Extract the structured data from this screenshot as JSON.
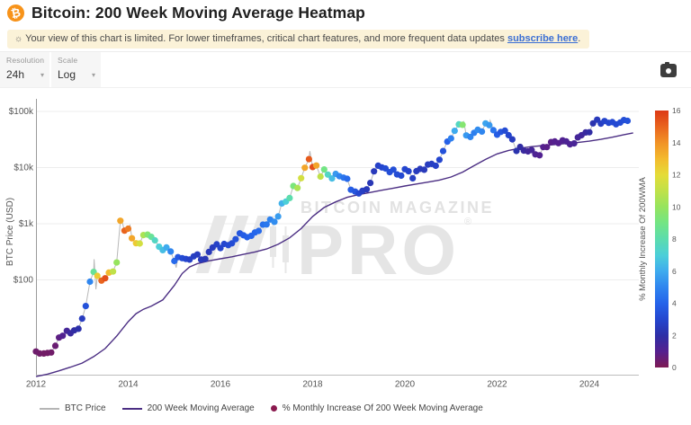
{
  "header": {
    "title": "Bitcoin: 200 Week Moving Average Heatmap",
    "icon_char": "₿"
  },
  "banner": {
    "icon_char": "☼",
    "text": "Your view of this chart is limited. For lower timeframes, critical chart features, and more frequent data updates ",
    "link": "subscribe here",
    "suffix": "."
  },
  "controls": {
    "resolution_label": "Resolution",
    "resolution_value": "24h",
    "scale_label": "Scale",
    "scale_value": "Log",
    "chevron_char": "▾"
  },
  "watermark": {
    "line1": "BITCOIN MAGAZINE",
    "line2": "PRO",
    "reg": "®"
  },
  "legend": {
    "items": [
      {
        "label": "BTC Price",
        "type": "line",
        "color": "#b5b5b5"
      },
      {
        "label": "200 Week Moving Average",
        "type": "line",
        "color": "#4b2e83"
      },
      {
        "label": "% Monthly Increase Of 200 Week Moving Average",
        "type": "dot",
        "color": "#8a1a4f"
      }
    ]
  },
  "chart_data": {
    "type": "scatter",
    "title": "Bitcoin: 200 Week Moving Average Heatmap",
    "xlabel": "",
    "ylabel": "BTC Price (USD)",
    "y_scale": "log",
    "x_range": [
      2012,
      2025
    ],
    "x_ticks": [
      2012,
      2014,
      2016,
      2018,
      2020,
      2022,
      2024
    ],
    "y_ticks": [
      {
        "label": "$100k",
        "value": 100000
      },
      {
        "label": "$10k",
        "value": 10000
      },
      {
        "label": "$1k",
        "value": 1000
      },
      {
        "label": "$100",
        "value": 100
      }
    ],
    "colorbar": {
      "label": "% Monthly Increase Of 200WMA",
      "range": [
        0,
        16
      ],
      "ticks": [
        0,
        2,
        4,
        6,
        8,
        10,
        12,
        14,
        16
      ],
      "stops": [
        [
          0,
          "#7f1a54"
        ],
        [
          1,
          "#55208f"
        ],
        [
          2,
          "#2d2ea6"
        ],
        [
          3,
          "#2446cf"
        ],
        [
          4,
          "#2563ea"
        ],
        [
          5,
          "#2f86ef"
        ],
        [
          6,
          "#3fabee"
        ],
        [
          7,
          "#4ccfd8"
        ],
        [
          8,
          "#5cdcad"
        ],
        [
          9,
          "#73e584"
        ],
        [
          10,
          "#96e45e"
        ],
        [
          11,
          "#c0e149"
        ],
        [
          12,
          "#e5dc38"
        ],
        [
          13,
          "#f3ba2d"
        ],
        [
          14,
          "#f19226"
        ],
        [
          15,
          "#e9641e"
        ],
        [
          16,
          "#dc3914"
        ]
      ]
    },
    "heatmap_points": [
      [
        2012.0,
        5.3,
        0.4
      ],
      [
        2012.08,
        4.9,
        0.35
      ],
      [
        2012.17,
        4.9,
        0.3
      ],
      [
        2012.25,
        5.0,
        0.3
      ],
      [
        2012.33,
        5.1,
        0.35
      ],
      [
        2012.42,
        6.7,
        0.5
      ],
      [
        2012.5,
        9.4,
        0.8
      ],
      [
        2012.58,
        10.1,
        1.1
      ],
      [
        2012.67,
        12.4,
        1.4
      ],
      [
        2012.75,
        11.2,
        1.7
      ],
      [
        2012.83,
        12.6,
        1.9
      ],
      [
        2012.92,
        13.5,
        2.1
      ],
      [
        2013.0,
        20.4,
        2.6
      ],
      [
        2013.08,
        34.2,
        3.4
      ],
      [
        2013.17,
        93,
        5.0
      ],
      [
        2013.25,
        139,
        8.5
      ],
      [
        2013.33,
        118,
        12.5
      ],
      [
        2013.42,
        97,
        15.0
      ],
      [
        2013.5,
        107,
        15.5
      ],
      [
        2013.58,
        135,
        13.0
      ],
      [
        2013.67,
        141,
        11.0
      ],
      [
        2013.75,
        204,
        10.0
      ],
      [
        2013.83,
        1130,
        13.5
      ],
      [
        2013.92,
        754,
        15.0
      ],
      [
        2014.0,
        816,
        14.5
      ],
      [
        2014.08,
        550,
        13.5
      ],
      [
        2014.17,
        450,
        12.5
      ],
      [
        2014.25,
        445,
        11.5
      ],
      [
        2014.33,
        628,
        10.5
      ],
      [
        2014.42,
        640,
        9.5
      ],
      [
        2014.5,
        585,
        8.5
      ],
      [
        2014.58,
        505,
        7.5
      ],
      [
        2014.67,
        389,
        7.0
      ],
      [
        2014.75,
        338,
        6.5
      ],
      [
        2014.83,
        378,
        6.0
      ],
      [
        2014.92,
        320,
        5.0
      ],
      [
        2015.0,
        217,
        4.2
      ],
      [
        2015.08,
        254,
        3.6
      ],
      [
        2015.17,
        244,
        3.2
      ],
      [
        2015.25,
        236,
        3.0
      ],
      [
        2015.33,
        230,
        2.8
      ],
      [
        2015.42,
        263,
        2.7
      ],
      [
        2015.5,
        284,
        2.6
      ],
      [
        2015.58,
        230,
        2.5
      ],
      [
        2015.67,
        236,
        2.4
      ],
      [
        2015.75,
        314,
        2.5
      ],
      [
        2015.83,
        377,
        2.6
      ],
      [
        2015.92,
        430,
        2.8
      ],
      [
        2016.0,
        368,
        2.9
      ],
      [
        2016.08,
        437,
        3.0
      ],
      [
        2016.17,
        416,
        3.1
      ],
      [
        2016.25,
        448,
        3.2
      ],
      [
        2016.33,
        531,
        3.4
      ],
      [
        2016.42,
        673,
        3.6
      ],
      [
        2016.5,
        624,
        3.8
      ],
      [
        2016.58,
        575,
        3.9
      ],
      [
        2016.67,
        610,
        4.0
      ],
      [
        2016.75,
        700,
        4.1
      ],
      [
        2016.83,
        745,
        4.2
      ],
      [
        2016.92,
        963,
        4.4
      ],
      [
        2017.0,
        970,
        4.6
      ],
      [
        2017.08,
        1190,
        4.9
      ],
      [
        2017.17,
        1080,
        5.2
      ],
      [
        2017.25,
        1350,
        5.6
      ],
      [
        2017.33,
        2300,
        6.2
      ],
      [
        2017.42,
        2480,
        7.0
      ],
      [
        2017.5,
        2870,
        8.0
      ],
      [
        2017.58,
        4700,
        9.2
      ],
      [
        2017.67,
        4340,
        10.5
      ],
      [
        2017.75,
        6470,
        11.5
      ],
      [
        2017.83,
        9920,
        13.5
      ],
      [
        2017.92,
        14160,
        15.2
      ],
      [
        2018.0,
        10220,
        15.5
      ],
      [
        2018.08,
        10900,
        13.5
      ],
      [
        2018.17,
        6930,
        11.0
      ],
      [
        2018.25,
        9240,
        9.0
      ],
      [
        2018.33,
        7490,
        7.5
      ],
      [
        2018.42,
        6400,
        6.5
      ],
      [
        2018.5,
        7730,
        5.5
      ],
      [
        2018.58,
        7010,
        5.0
      ],
      [
        2018.67,
        6630,
        4.5
      ],
      [
        2018.75,
        6300,
        4.2
      ],
      [
        2018.83,
        4020,
        3.8
      ],
      [
        2018.92,
        3740,
        3.5
      ],
      [
        2019.0,
        3460,
        3.0
      ],
      [
        2019.08,
        3850,
        2.7
      ],
      [
        2019.17,
        4100,
        2.5
      ],
      [
        2019.25,
        5320,
        2.4
      ],
      [
        2019.33,
        8570,
        2.5
      ],
      [
        2019.42,
        10820,
        2.8
      ],
      [
        2019.5,
        10080,
        3.0
      ],
      [
        2019.58,
        9630,
        3.2
      ],
      [
        2019.67,
        8290,
        3.3
      ],
      [
        2019.75,
        9200,
        3.3
      ],
      [
        2019.83,
        7560,
        3.2
      ],
      [
        2019.92,
        7190,
        3.1
      ],
      [
        2020.0,
        9350,
        3.0
      ],
      [
        2020.08,
        8600,
        2.9
      ],
      [
        2020.17,
        6440,
        2.7
      ],
      [
        2020.25,
        8630,
        2.6
      ],
      [
        2020.33,
        9450,
        2.5
      ],
      [
        2020.42,
        9140,
        2.5
      ],
      [
        2020.5,
        11320,
        2.6
      ],
      [
        2020.58,
        11650,
        2.7
      ],
      [
        2020.67,
        10780,
        2.8
      ],
      [
        2020.75,
        13800,
        3.0
      ],
      [
        2020.83,
        19700,
        3.4
      ],
      [
        2020.92,
        28990,
        3.9
      ],
      [
        2021.0,
        33110,
        4.8
      ],
      [
        2021.08,
        45140,
        6.0
      ],
      [
        2021.17,
        58800,
        7.5
      ],
      [
        2021.25,
        57750,
        9.5
      ],
      [
        2021.33,
        37330,
        5.5
      ],
      [
        2021.42,
        35040,
        5.0
      ],
      [
        2021.5,
        41550,
        4.8
      ],
      [
        2021.58,
        47130,
        5.2
      ],
      [
        2021.67,
        43790,
        5.0
      ],
      [
        2021.75,
        61320,
        5.8
      ],
      [
        2021.83,
        57000,
        5.5
      ],
      [
        2021.92,
        46220,
        4.5
      ],
      [
        2022.0,
        38480,
        3.8
      ],
      [
        2022.08,
        43190,
        3.5
      ],
      [
        2022.17,
        45540,
        3.2
      ],
      [
        2022.25,
        37640,
        3.0
      ],
      [
        2022.33,
        31790,
        2.6
      ],
      [
        2022.42,
        19780,
        2.2
      ],
      [
        2022.5,
        23340,
        1.9
      ],
      [
        2022.58,
        20050,
        1.7
      ],
      [
        2022.67,
        19430,
        1.5
      ],
      [
        2022.75,
        20490,
        1.4
      ],
      [
        2022.83,
        17170,
        1.2
      ],
      [
        2022.92,
        16550,
        1.1
      ],
      [
        2023.0,
        23140,
        1.0
      ],
      [
        2023.08,
        23150,
        0.9
      ],
      [
        2023.17,
        28480,
        0.9
      ],
      [
        2023.25,
        29230,
        1.0
      ],
      [
        2023.33,
        27220,
        1.0
      ],
      [
        2023.42,
        30480,
        1.1
      ],
      [
        2023.5,
        29230,
        1.2
      ],
      [
        2023.58,
        25930,
        1.2
      ],
      [
        2023.67,
        26960,
        1.3
      ],
      [
        2023.75,
        34500,
        1.4
      ],
      [
        2023.83,
        37710,
        1.5
      ],
      [
        2023.92,
        42280,
        1.7
      ],
      [
        2024.0,
        42580,
        1.9
      ],
      [
        2024.08,
        61200,
        2.2
      ],
      [
        2024.17,
        71330,
        2.5
      ],
      [
        2024.25,
        60640,
        2.7
      ],
      [
        2024.33,
        67500,
        2.9
      ],
      [
        2024.42,
        62680,
        3.0
      ],
      [
        2024.5,
        64620,
        3.1
      ],
      [
        2024.58,
        58970,
        3.1
      ],
      [
        2024.67,
        63330,
        3.2
      ],
      [
        2024.75,
        70220,
        3.3
      ],
      [
        2024.83,
        68000,
        3.4
      ]
    ],
    "price_line_extra": [
      [
        2013.26,
        233
      ],
      [
        2013.3,
        68
      ],
      [
        2013.86,
        1150
      ],
      [
        2014.04,
        940
      ],
      [
        2015.04,
        165
      ],
      [
        2017.94,
        19650
      ],
      [
        2021.28,
        64800
      ],
      [
        2021.85,
        69000
      ],
      [
        2024.2,
        73800
      ]
    ],
    "wma_line": [
      [
        2012.0,
        1.9
      ],
      [
        2012.25,
        2.1
      ],
      [
        2012.5,
        2.4
      ],
      [
        2012.75,
        2.8
      ],
      [
        2013.0,
        3.3
      ],
      [
        2013.25,
        4.3
      ],
      [
        2013.5,
        6
      ],
      [
        2013.75,
        10
      ],
      [
        2014.0,
        18
      ],
      [
        2014.17,
        25
      ],
      [
        2014.33,
        30
      ],
      [
        2014.5,
        34
      ],
      [
        2014.75,
        44
      ],
      [
        2015.0,
        80
      ],
      [
        2015.17,
        130
      ],
      [
        2015.33,
        170
      ],
      [
        2015.5,
        195
      ],
      [
        2015.75,
        218
      ],
      [
        2016.0,
        238
      ],
      [
        2016.25,
        258
      ],
      [
        2016.5,
        285
      ],
      [
        2016.75,
        315
      ],
      [
        2017.0,
        355
      ],
      [
        2017.25,
        430
      ],
      [
        2017.5,
        560
      ],
      [
        2017.75,
        820
      ],
      [
        2018.0,
        1350
      ],
      [
        2018.25,
        1950
      ],
      [
        2018.5,
        2450
      ],
      [
        2018.75,
        2950
      ],
      [
        2019.0,
        3300
      ],
      [
        2019.25,
        3600
      ],
      [
        2019.5,
        3950
      ],
      [
        2019.75,
        4300
      ],
      [
        2020.0,
        4700
      ],
      [
        2020.25,
        5100
      ],
      [
        2020.5,
        5500
      ],
      [
        2020.75,
        6000
      ],
      [
        2021.0,
        6800
      ],
      [
        2021.25,
        8300
      ],
      [
        2021.5,
        10800
      ],
      [
        2021.75,
        14000
      ],
      [
        2022.0,
        17500
      ],
      [
        2022.25,
        20200
      ],
      [
        2022.5,
        22200
      ],
      [
        2022.75,
        23600
      ],
      [
        2023.0,
        24700
      ],
      [
        2023.25,
        25700
      ],
      [
        2023.5,
        26800
      ],
      [
        2023.75,
        28000
      ],
      [
        2024.0,
        29500
      ],
      [
        2024.25,
        31800
      ],
      [
        2024.5,
        34800
      ],
      [
        2024.75,
        38500
      ],
      [
        2024.95,
        41500
      ]
    ]
  }
}
